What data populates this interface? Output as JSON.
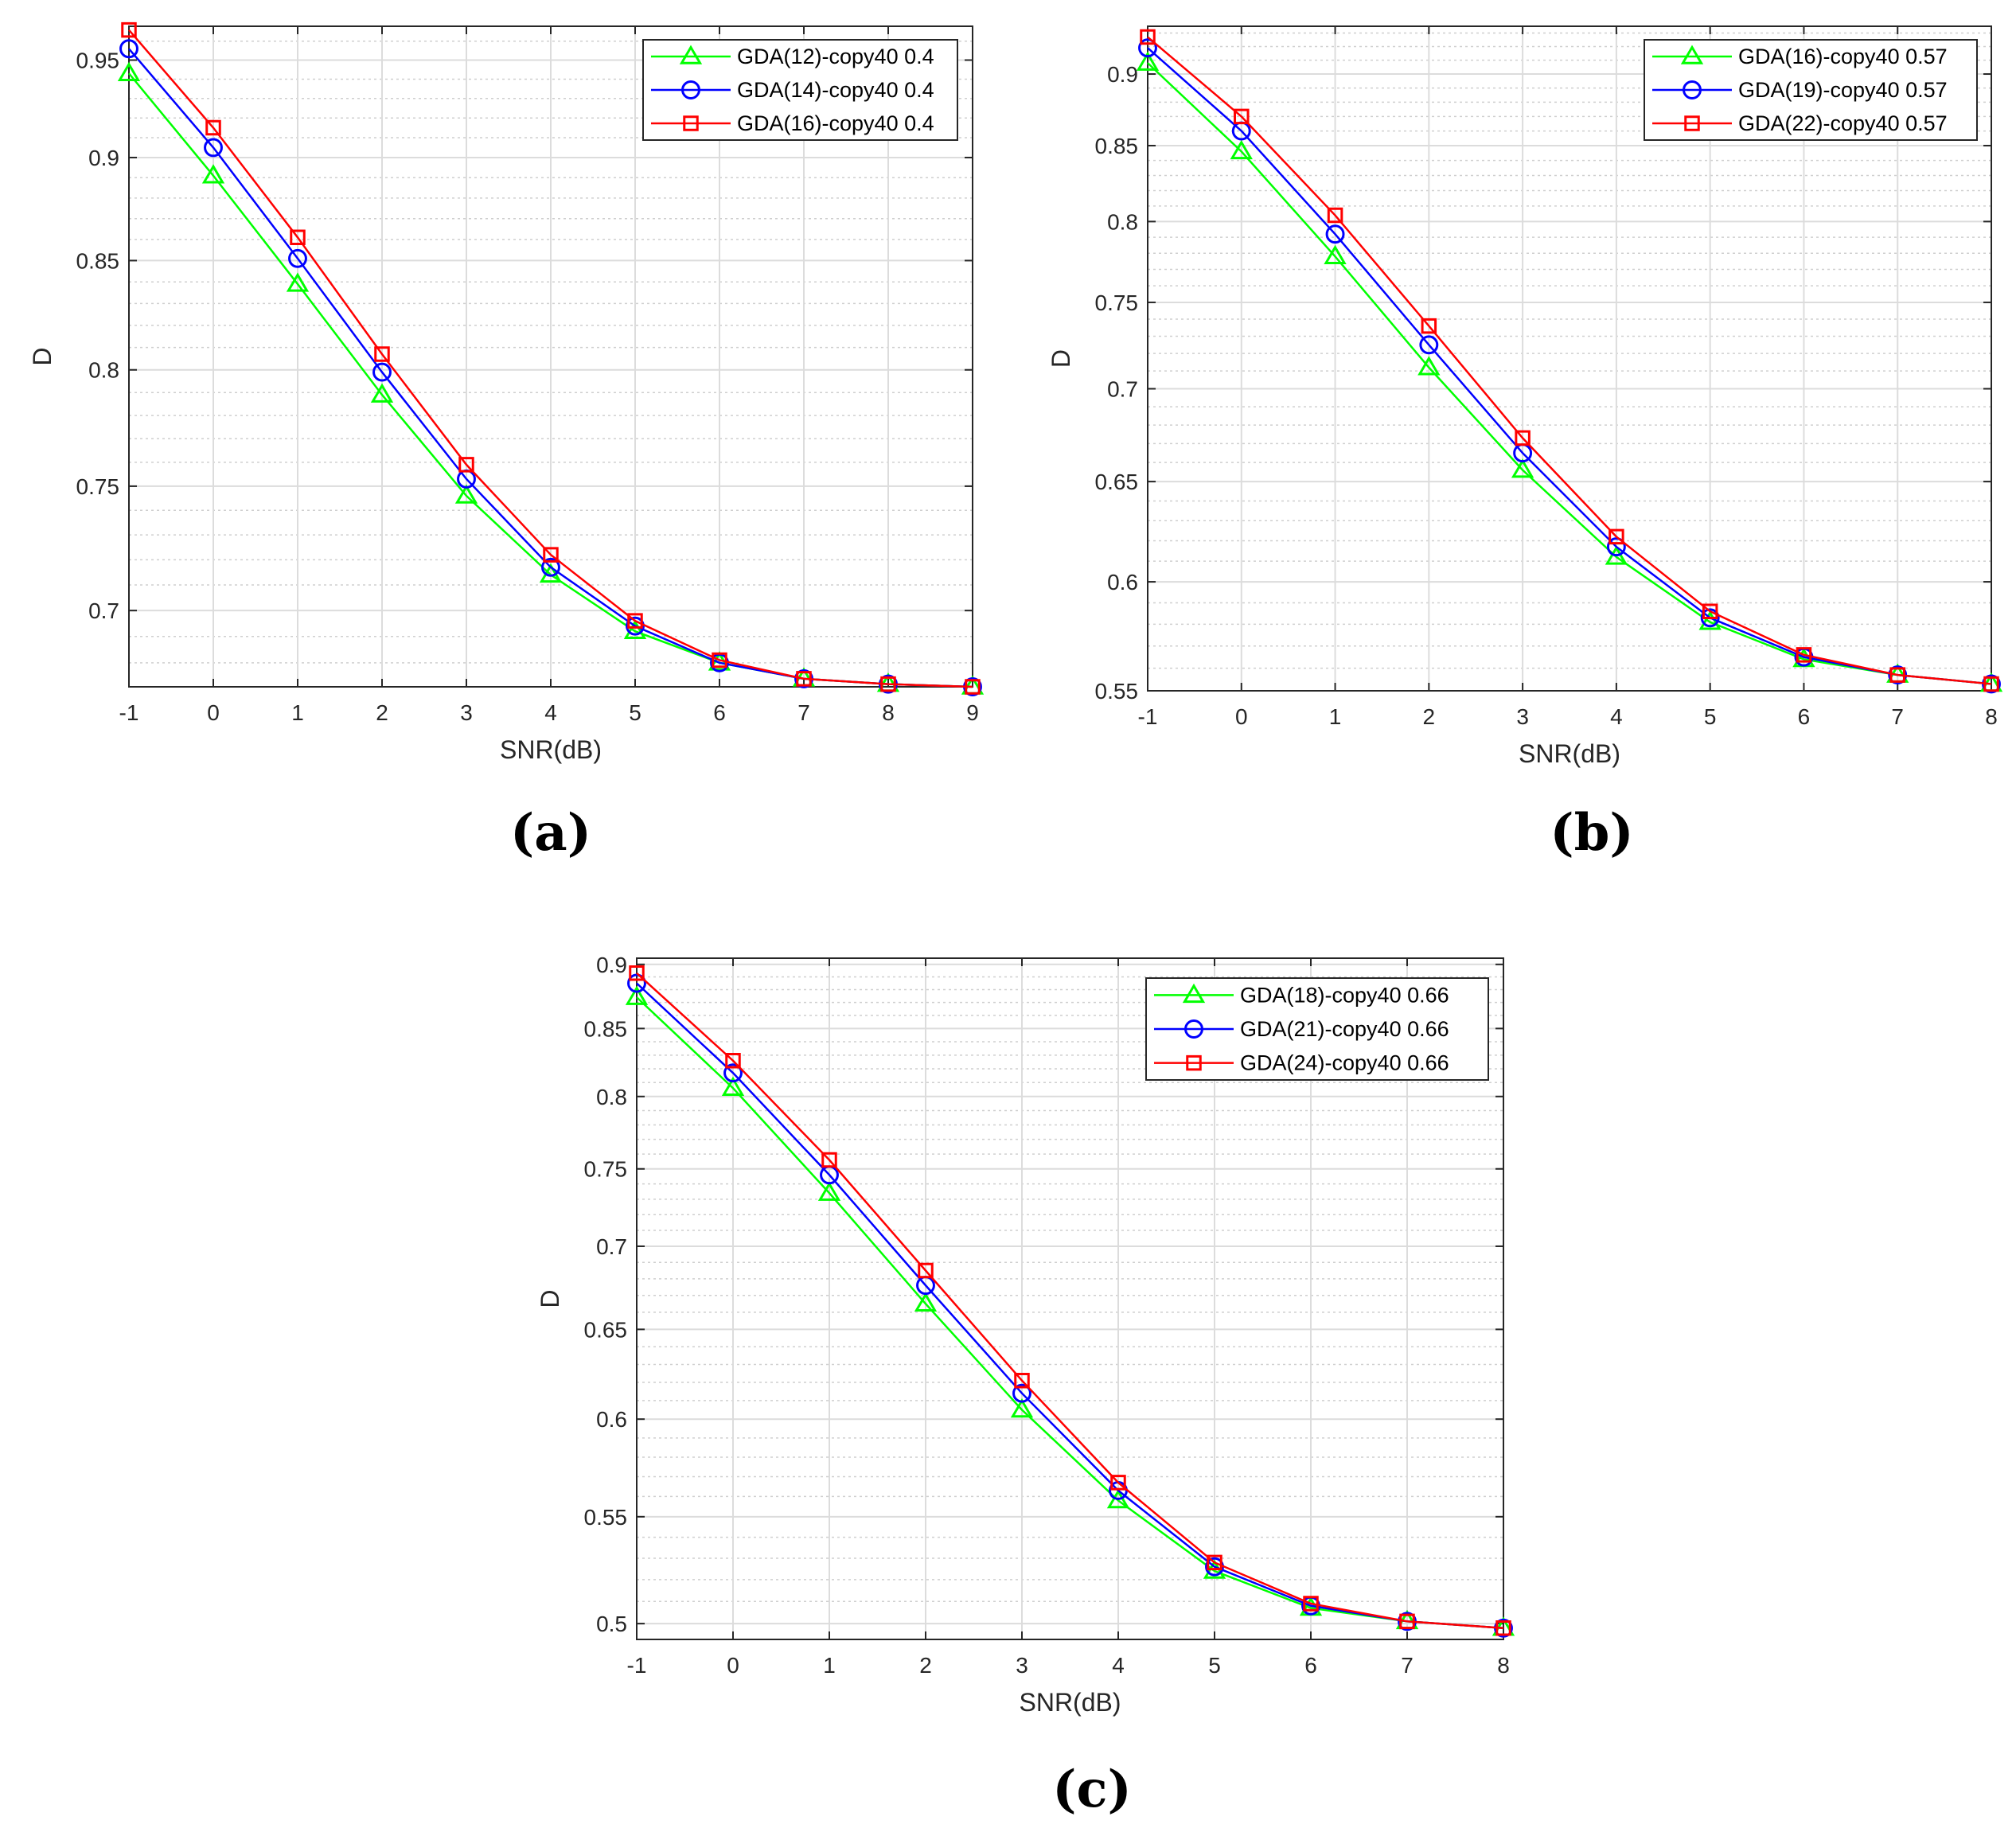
{
  "chart_data": [
    {
      "type": "line",
      "panel": "a",
      "caption": "(a)",
      "xlabel": "SNR(dB)",
      "ylabel": "D",
      "x": [
        -1,
        0,
        1,
        2,
        3,
        4,
        5,
        6,
        7,
        8,
        9
      ],
      "xticks": [
        -1,
        0,
        1,
        2,
        3,
        4,
        5,
        6,
        7,
        8,
        9
      ],
      "xlim": [
        -1,
        9
      ],
      "yscale": "log",
      "ylim": [
        0.671,
        0.968
      ],
      "yticks": [
        0.7,
        0.75,
        0.8,
        0.85,
        0.9,
        0.95
      ],
      "yticklabels": [
        "0.7",
        "0.75",
        "0.8",
        "0.85",
        "0.9",
        "0.95"
      ],
      "grid": true,
      "legend_position": "top-right",
      "series": [
        {
          "name": "GDA(12)-copy40 0.4",
          "color": "#00ff00",
          "marker": "triangle",
          "values": [
            0.943,
            0.891,
            0.839,
            0.789,
            0.746,
            0.714,
            0.692,
            0.68,
            0.674,
            0.672,
            0.671
          ]
        },
        {
          "name": "GDA(14)-copy40 0.4",
          "color": "#0000ff",
          "marker": "circle",
          "values": [
            0.956,
            0.905,
            0.851,
            0.799,
            0.753,
            0.717,
            0.694,
            0.68,
            0.674,
            0.672,
            0.671
          ]
        },
        {
          "name": "GDA(16)-copy40 0.4",
          "color": "#ff0000",
          "marker": "square",
          "values": [
            0.966,
            0.915,
            0.861,
            0.807,
            0.759,
            0.722,
            0.696,
            0.681,
            0.674,
            0.672,
            0.671
          ]
        }
      ]
    },
    {
      "type": "line",
      "panel": "b",
      "caption": "(b)",
      "xlabel": "SNR(dB)",
      "ylabel": "D",
      "x": [
        -1,
        0,
        1,
        2,
        3,
        4,
        5,
        6,
        7,
        8
      ],
      "xticks": [
        -1,
        0,
        1,
        2,
        3,
        4,
        5,
        6,
        7,
        8
      ],
      "xlim": [
        -1,
        8
      ],
      "yscale": "log",
      "ylim": [
        0.55,
        0.935
      ],
      "yticks": [
        0.55,
        0.6,
        0.65,
        0.7,
        0.75,
        0.8,
        0.85,
        0.9
      ],
      "yticklabels": [
        "0.55",
        "0.6",
        "0.65",
        "0.7",
        "0.75",
        "0.8",
        "0.85",
        "0.9"
      ],
      "grid": true,
      "legend_position": "top-right",
      "series": [
        {
          "name": "GDA(16)-copy40 0.57",
          "color": "#00ff00",
          "marker": "triangle",
          "values": [
            0.908,
            0.846,
            0.778,
            0.712,
            0.656,
            0.612,
            0.581,
            0.564,
            0.557,
            0.553
          ]
        },
        {
          "name": "GDA(19)-copy40 0.57",
          "color": "#0000ff",
          "marker": "circle",
          "values": [
            0.919,
            0.86,
            0.792,
            0.725,
            0.665,
            0.617,
            0.583,
            0.565,
            0.557,
            0.553
          ]
        },
        {
          "name": "GDA(22)-copy40 0.57",
          "color": "#ff0000",
          "marker": "square",
          "values": [
            0.927,
            0.87,
            0.804,
            0.736,
            0.673,
            0.622,
            0.586,
            0.566,
            0.557,
            0.553
          ]
        }
      ]
    },
    {
      "type": "line",
      "panel": "c",
      "caption": "(c)",
      "xlabel": "SNR(dB)",
      "ylabel": "D",
      "x": [
        -1,
        0,
        1,
        2,
        3,
        4,
        5,
        6,
        7,
        8
      ],
      "xticks": [
        -1,
        0,
        1,
        2,
        3,
        4,
        5,
        6,
        7,
        8
      ],
      "xlim": [
        -1,
        8
      ],
      "yscale": "log",
      "ylim": [
        0.493,
        0.905
      ],
      "yticks": [
        0.5,
        0.55,
        0.6,
        0.65,
        0.7,
        0.75,
        0.8,
        0.85,
        0.9
      ],
      "yticklabels": [
        "0.5",
        "0.55",
        "0.6",
        "0.65",
        "0.7",
        "0.75",
        "0.8",
        "0.85",
        "0.9"
      ],
      "grid": true,
      "legend_position": "top-right",
      "series": [
        {
          "name": "GDA(18)-copy40 0.66",
          "color": "#00ff00",
          "marker": "triangle",
          "values": [
            0.874,
            0.806,
            0.734,
            0.665,
            0.605,
            0.558,
            0.524,
            0.507,
            0.501,
            0.498
          ]
        },
        {
          "name": "GDA(21)-copy40 0.66",
          "color": "#0000ff",
          "marker": "circle",
          "values": [
            0.885,
            0.817,
            0.746,
            0.676,
            0.614,
            0.563,
            0.526,
            0.508,
            0.501,
            0.498
          ]
        },
        {
          "name": "GDA(24)-copy40 0.66",
          "color": "#ff0000",
          "marker": "square",
          "values": [
            0.893,
            0.826,
            0.756,
            0.685,
            0.621,
            0.567,
            0.528,
            0.509,
            0.501,
            0.498
          ]
        }
      ]
    }
  ]
}
